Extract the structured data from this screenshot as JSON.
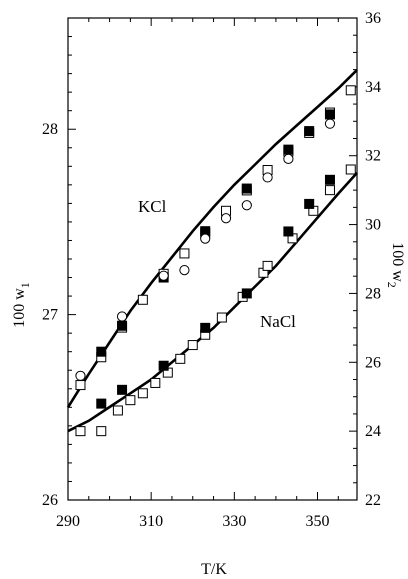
{
  "chart_data": {
    "type": "scatter",
    "xlabel": "T/K",
    "ylabel_left": "100 w",
    "ylabel_left_sub": "1",
    "ylabel_right": "100 w",
    "ylabel_right_sub": "2",
    "xlim": [
      290,
      359.5
    ],
    "ylim_left": [
      26,
      28.6
    ],
    "ylim_right": [
      22,
      36
    ],
    "x_ticks": [
      290,
      310,
      330,
      350
    ],
    "y_left_ticks": [
      26,
      27,
      28
    ],
    "y_right_ticks": [
      22,
      24,
      26,
      28,
      30,
      32,
      34,
      36
    ],
    "grid": false,
    "curve_labels": [
      "KCl",
      "NaCl"
    ],
    "series": [
      {
        "name": "KCl",
        "axis": "left",
        "marker": "open-square",
        "x": [
          293,
          298,
          303,
          308,
          313,
          318,
          323,
          328,
          333,
          338,
          343,
          348,
          353,
          358
        ],
        "y": [
          26.62,
          26.77,
          26.93,
          27.08,
          27.22,
          27.33,
          27.44,
          27.56,
          27.67,
          27.78,
          27.88,
          27.98,
          28.09,
          28.21
        ]
      },
      {
        "name": "KCl",
        "axis": "left",
        "marker": "filled-square",
        "x": [
          298,
          303,
          313,
          323,
          333,
          343,
          348,
          353
        ],
        "y": [
          26.8,
          26.94,
          27.2,
          27.45,
          27.68,
          27.89,
          27.99,
          28.08
        ]
      },
      {
        "name": "KCl",
        "axis": "left",
        "marker": "open-circle",
        "x": [
          293,
          303,
          313,
          318,
          323,
          328,
          333,
          338,
          343,
          353
        ],
        "y": [
          26.67,
          26.99,
          27.21,
          27.24,
          27.41,
          27.52,
          27.59,
          27.74,
          27.84,
          28.03
        ]
      },
      {
        "name": "NaCl",
        "axis": "right",
        "marker": "open-square",
        "x": [
          293,
          298,
          302,
          305,
          308,
          311,
          314,
          317,
          320,
          323,
          327,
          332,
          337,
          338,
          344,
          349,
          353,
          358
        ],
        "y": [
          24.0,
          24.0,
          24.6,
          24.9,
          25.1,
          25.4,
          25.7,
          26.1,
          26.5,
          26.8,
          27.3,
          27.9,
          28.6,
          28.8,
          29.6,
          30.4,
          31.0,
          31.6
        ]
      },
      {
        "name": "NaCl",
        "axis": "right",
        "marker": "filled-square",
        "x": [
          298,
          303,
          313,
          323,
          333,
          343,
          348,
          353
        ],
        "y": [
          24.8,
          25.2,
          25.9,
          27.0,
          28.0,
          29.8,
          30.6,
          31.3
        ]
      }
    ],
    "fit_curves": [
      {
        "name": "KCl",
        "axis": "left",
        "x": [
          290,
          295,
          300,
          305,
          310,
          315,
          320,
          325,
          330,
          335,
          340,
          345,
          350,
          355,
          359.5
        ],
        "y": [
          26.5,
          26.68,
          26.85,
          27.02,
          27.17,
          27.31,
          27.45,
          27.58,
          27.7,
          27.81,
          27.92,
          28.02,
          28.12,
          28.22,
          28.32
        ]
      },
      {
        "name": "NaCl",
        "axis": "right",
        "x": [
          290,
          295,
          300,
          305,
          310,
          315,
          320,
          325,
          330,
          335,
          340,
          345,
          350,
          355,
          359.5
        ],
        "y": [
          24.0,
          24.3,
          24.7,
          25.1,
          25.5,
          26.0,
          26.5,
          27.0,
          27.6,
          28.2,
          28.8,
          29.5,
          30.2,
          30.9,
          31.5
        ]
      }
    ]
  }
}
